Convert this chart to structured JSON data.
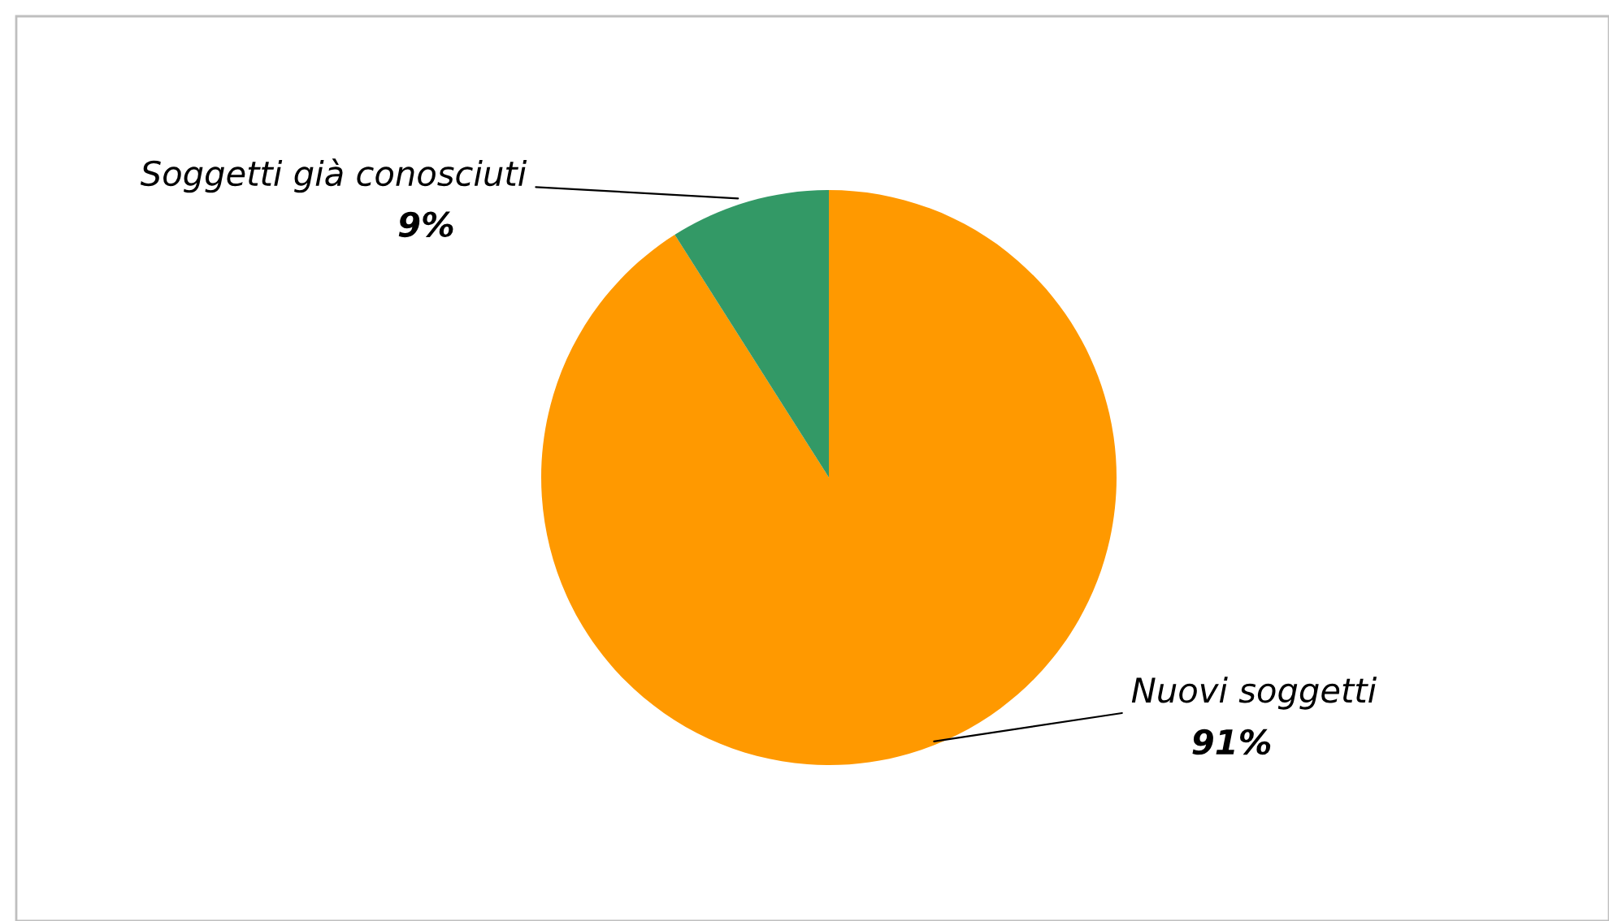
{
  "chart_data": {
    "type": "pie",
    "categories": [
      "Nuovi soggetti",
      "Soggetti già conosciuti"
    ],
    "values": [
      91,
      9
    ],
    "colors": [
      "#ff9900",
      "#339966"
    ],
    "value_labels": [
      "91%",
      "9%"
    ]
  }
}
